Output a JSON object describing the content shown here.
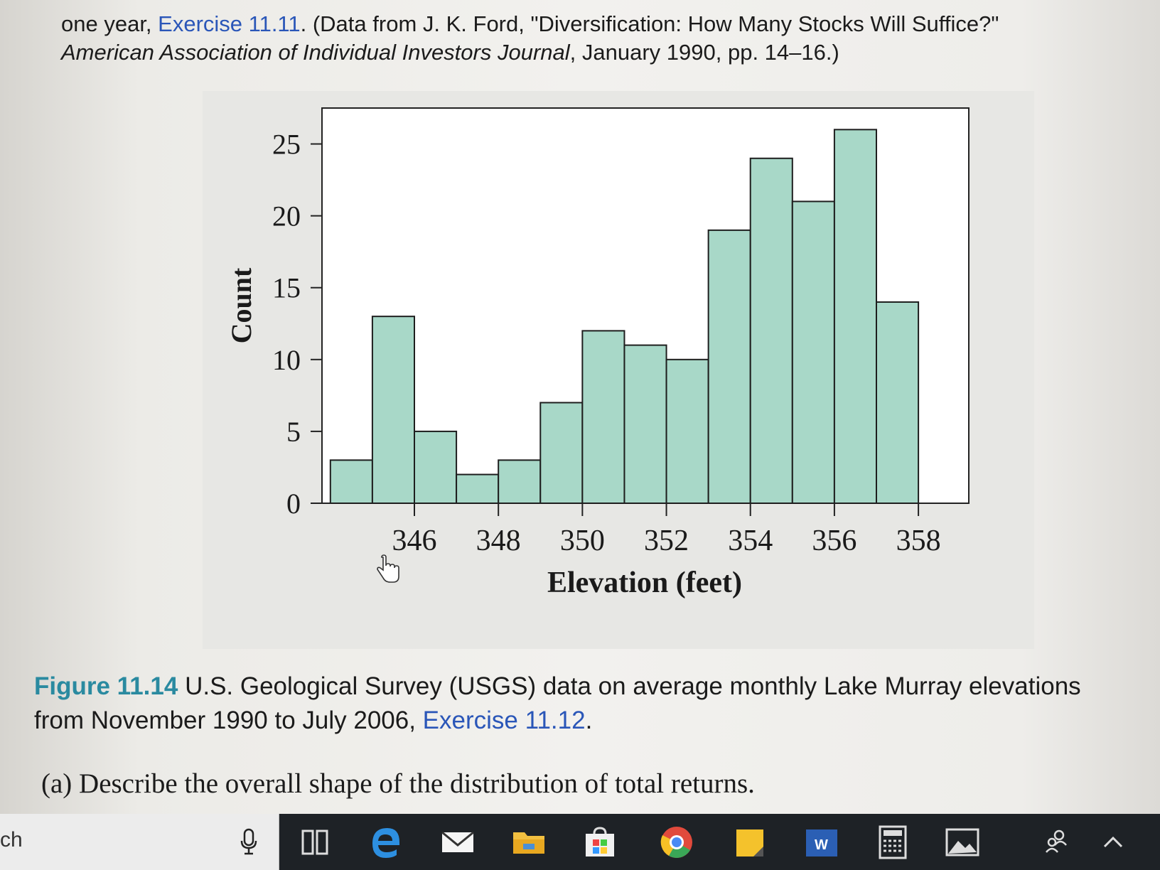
{
  "top_text": {
    "line1_prefix": "one year, ",
    "line1_link": "Exercise 11.11",
    "line1_suffix": ". (Data from J. K. Ford, \"Diversification: How Many Stocks Will Suffice?\"",
    "line2_italic": "American Association of Individual Investors Journal",
    "line2_rest": ", January 1990, pp. 14–16.)"
  },
  "chart_data": {
    "type": "bar",
    "title": "",
    "xlabel": "Elevation (feet)",
    "ylabel": "Count",
    "bin_edges": [
      344,
      345,
      346,
      347,
      348,
      349,
      350,
      351,
      352,
      353,
      354,
      355,
      356,
      357,
      358
    ],
    "values": [
      3,
      13,
      5,
      2,
      3,
      7,
      12,
      11,
      10,
      19,
      24,
      21,
      26,
      14
    ],
    "x_ticks": [
      346,
      348,
      350,
      352,
      354,
      356,
      358
    ],
    "y_ticks": [
      0,
      5,
      10,
      15,
      20,
      25
    ],
    "xlim": [
      343.8,
      359.2
    ],
    "ylim": [
      0,
      27.5
    ],
    "grid": false,
    "bar_color": "#a8d8c8"
  },
  "caption": {
    "label": "Figure 11.14",
    "text": "U.S. Geological Survey (USGS) data on average monthly Lake Murray elevations",
    "text_line2": "from November 1990 to July 2006, ",
    "link": "Exercise 11.12",
    "end": "."
  },
  "question": "(a) Describe the overall shape of the distribution of total returns.",
  "taskbar": {
    "search_text": "ch",
    "icons": [
      "microphone-icon",
      "task-view-icon",
      "edge-icon",
      "mail-icon",
      "file-explorer-icon",
      "store-icon",
      "chrome-icon",
      "sticky-notes-icon",
      "word-icon",
      "calculator-icon",
      "photos-icon",
      "people-icon",
      "chevron-up-icon"
    ]
  }
}
